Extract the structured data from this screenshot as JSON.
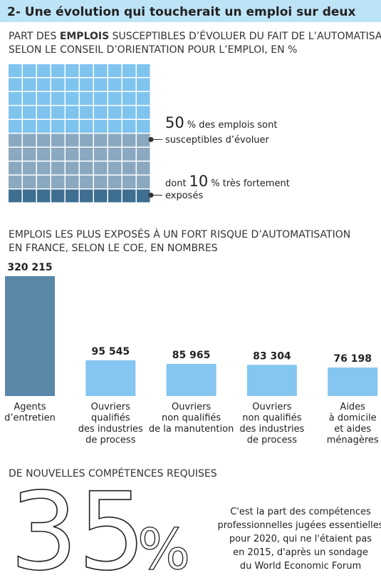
{
  "title": "2- Une évolution qui toucherait un emploi sur deux",
  "chart_data": [
    {
      "type": "waffle",
      "subtitle": [
        [
          "PART DES ",
          "EMPLOIS",
          " SUSCEPTIBLES D’ÉVOLUER DU FAIT DE L’AUTOMATISATION,"
        ],
        [
          "SELON LE CONSEIL D’ORIENTATION POUR L’EMPLOI, EN %"
        ]
      ],
      "values": [
        50,
        10
      ],
      "colors": [
        "#8aa8c0",
        "#3e6f90"
      ],
      "base_color": "#7fc4ef",
      "annotations": [
        [
          "% des emplois sont",
          "susceptibles d’évoluer"
        ],
        [
          "dont",
          "% très fortement",
          "exposés"
        ]
      ]
    },
    {
      "type": "bar",
      "title": [
        "EMPLOIS LES PLUS EXPOSÉS À UN FORT RISQUE D’AUTOMATISATION",
        "EN FRANCE, SELON LE COE, EN NOMBRES"
      ],
      "categories": [
        [
          "Agents",
          "d’entretien"
        ],
        [
          "Ouvriers",
          "qualifiés",
          "des industries",
          "de process"
        ],
        [
          "Ouvriers",
          "non qualifiés",
          "de la manutention"
        ],
        [
          "Ouvriers",
          "non qualifiés",
          "des industries",
          "de process"
        ],
        [
          "Aides",
          "à domicile",
          "et aides",
          "ménagères"
        ]
      ],
      "values": [
        320215,
        95545,
        85965,
        83304,
        76198
      ],
      "value_labels": [
        "320 215",
        "95 545",
        "85 965",
        "83 304",
        "76 198"
      ],
      "colors": [
        "#5b87a8",
        "#85c6f0",
        "#85c6f0",
        "#85c6f0",
        "#85c6f0"
      ],
      "ylim": [
        0,
        320215
      ]
    }
  ],
  "footer": {
    "heading": "DE NOUVELLES COMPÉTENCES REQUISES",
    "figure": 35,
    "unit": "%",
    "text": [
      "C'est la part des compétences",
      "professionnelles jugées essentielles",
      "pour 2020, qui ne l'étaient pas",
      "en 2015, d'après un sondage",
      "du World Economic Forum"
    ]
  }
}
